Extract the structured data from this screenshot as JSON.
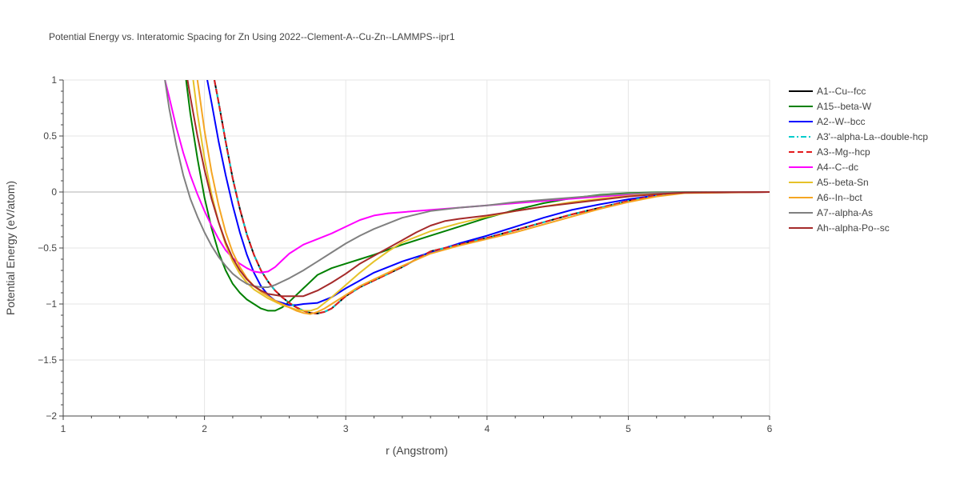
{
  "chart_data": {
    "type": "line",
    "title": "Potential Energy vs. Interatomic Spacing for Zn Using 2022--Clement-A--Cu-Zn--LAMMPS--ipr1",
    "xlabel": "r (Angstrom)",
    "ylabel": "Potential Energy (eV/atom)",
    "xlim": [
      1,
      6
    ],
    "ylim": [
      -2,
      1
    ],
    "xticks": [
      1,
      2,
      3,
      4,
      5,
      6
    ],
    "yticks": [
      1,
      0.5,
      0,
      -0.5,
      -1,
      -1.5,
      -2
    ],
    "ytick_labels": [
      "1",
      "0.5",
      "0",
      "−0.5",
      "−1",
      "−1.5",
      "−2"
    ],
    "grid": true,
    "legend_position": "right",
    "series": [
      {
        "name": "A1--Cu--fcc",
        "color": "#000000",
        "dash": "solid",
        "x": [
          2.07,
          2.1,
          2.15,
          2.2,
          2.25,
          2.3,
          2.35,
          2.4,
          2.45,
          2.5,
          2.55,
          2.6,
          2.65,
          2.7,
          2.75,
          2.8,
          2.85,
          2.9,
          3.0,
          3.1,
          3.2,
          3.3,
          3.4,
          3.5,
          3.6,
          3.8,
          4.0,
          4.2,
          4.4,
          4.6,
          4.8,
          5.0,
          5.2,
          5.4,
          5.6,
          6.0
        ],
        "y": [
          1.0,
          0.8,
          0.45,
          0.12,
          -0.15,
          -0.38,
          -0.56,
          -0.7,
          -0.8,
          -0.88,
          -0.94,
          -0.99,
          -1.03,
          -1.06,
          -1.08,
          -1.085,
          -1.07,
          -1.04,
          -0.93,
          -0.85,
          -0.79,
          -0.73,
          -0.67,
          -0.6,
          -0.53,
          -0.47,
          -0.41,
          -0.34,
          -0.27,
          -0.2,
          -0.14,
          -0.08,
          -0.03,
          -0.005,
          0.0,
          0.0
        ]
      },
      {
        "name": "A15--beta-W",
        "color": "#008000",
        "dash": "solid",
        "x": [
          1.87,
          1.9,
          1.95,
          2.0,
          2.05,
          2.1,
          2.15,
          2.2,
          2.25,
          2.3,
          2.35,
          2.4,
          2.45,
          2.5,
          2.55,
          2.6,
          2.65,
          2.7,
          2.8,
          2.9,
          3.0,
          3.1,
          3.2,
          3.4,
          3.6,
          3.8,
          4.0,
          4.2,
          4.4,
          4.6,
          4.8,
          5.0,
          5.2,
          5.4,
          6.0
        ],
        "y": [
          1.0,
          0.7,
          0.3,
          -0.05,
          -0.32,
          -0.54,
          -0.7,
          -0.82,
          -0.9,
          -0.96,
          -1.0,
          -1.04,
          -1.06,
          -1.06,
          -1.03,
          -0.98,
          -0.92,
          -0.86,
          -0.74,
          -0.68,
          -0.64,
          -0.6,
          -0.56,
          -0.47,
          -0.39,
          -0.31,
          -0.23,
          -0.16,
          -0.1,
          -0.055,
          -0.025,
          -0.01,
          -0.003,
          0.0,
          0.0
        ]
      },
      {
        "name": "A2--W--bcc",
        "color": "#0000ff",
        "dash": "solid",
        "x": [
          2.02,
          2.05,
          2.1,
          2.15,
          2.2,
          2.25,
          2.3,
          2.35,
          2.4,
          2.45,
          2.5,
          2.55,
          2.6,
          2.65,
          2.7,
          2.8,
          2.9,
          3.0,
          3.1,
          3.2,
          3.3,
          3.4,
          3.6,
          3.8,
          4.0,
          4.2,
          4.4,
          4.6,
          4.8,
          5.0,
          5.2,
          5.4,
          6.0
        ],
        "y": [
          1.0,
          0.8,
          0.45,
          0.15,
          -0.12,
          -0.36,
          -0.56,
          -0.72,
          -0.84,
          -0.92,
          -0.97,
          -0.99,
          -1.01,
          -1.01,
          -1.0,
          -0.99,
          -0.94,
          -0.86,
          -0.79,
          -0.72,
          -0.67,
          -0.62,
          -0.54,
          -0.46,
          -0.39,
          -0.31,
          -0.23,
          -0.16,
          -0.11,
          -0.065,
          -0.03,
          -0.008,
          0.0
        ]
      },
      {
        "name": "A3'--alpha-La--double-hcp",
        "color": "#00cccc",
        "dash": "dashdot",
        "x": [
          2.07,
          2.1,
          2.15,
          2.2,
          2.25,
          2.3,
          2.35,
          2.4,
          2.45,
          2.5,
          2.55,
          2.6,
          2.65,
          2.7,
          2.75,
          2.8,
          2.85,
          2.9,
          3.0,
          3.1,
          3.2,
          3.3,
          3.4,
          3.5,
          3.6,
          3.8,
          4.0,
          4.2,
          4.4,
          4.6,
          4.8,
          5.0,
          5.2,
          5.4,
          5.6,
          6.0
        ],
        "y": [
          1.0,
          0.8,
          0.45,
          0.12,
          -0.15,
          -0.38,
          -0.56,
          -0.7,
          -0.8,
          -0.88,
          -0.94,
          -0.99,
          -1.03,
          -1.06,
          -1.08,
          -1.085,
          -1.07,
          -1.04,
          -0.93,
          -0.85,
          -0.79,
          -0.73,
          -0.67,
          -0.6,
          -0.53,
          -0.47,
          -0.41,
          -0.34,
          -0.27,
          -0.2,
          -0.14,
          -0.08,
          -0.03,
          -0.005,
          0.0,
          0.0
        ]
      },
      {
        "name": "A3--Mg--hcp",
        "color": "#e41a1c",
        "dash": "dash",
        "x": [
          2.07,
          2.1,
          2.15,
          2.2,
          2.25,
          2.3,
          2.35,
          2.4,
          2.45,
          2.5,
          2.55,
          2.6,
          2.65,
          2.7,
          2.75,
          2.8,
          2.85,
          2.9,
          3.0,
          3.1,
          3.2,
          3.3,
          3.4,
          3.5,
          3.6,
          3.8,
          4.0,
          4.2,
          4.4,
          4.6,
          4.8,
          5.0,
          5.2,
          5.4,
          5.6,
          6.0
        ],
        "y": [
          1.0,
          0.8,
          0.45,
          0.12,
          -0.15,
          -0.38,
          -0.56,
          -0.7,
          -0.8,
          -0.88,
          -0.94,
          -0.99,
          -1.03,
          -1.06,
          -1.08,
          -1.085,
          -1.07,
          -1.04,
          -0.93,
          -0.85,
          -0.79,
          -0.73,
          -0.67,
          -0.6,
          -0.53,
          -0.47,
          -0.41,
          -0.34,
          -0.27,
          -0.2,
          -0.14,
          -0.08,
          -0.03,
          -0.005,
          0.0,
          0.0
        ]
      },
      {
        "name": "A4--C--dc",
        "color": "#ff00ff",
        "dash": "solid",
        "x": [
          1.72,
          1.75,
          1.8,
          1.85,
          1.9,
          1.95,
          2.0,
          2.05,
          2.1,
          2.15,
          2.2,
          2.25,
          2.3,
          2.35,
          2.4,
          2.45,
          2.5,
          2.55,
          2.6,
          2.7,
          2.8,
          2.9,
          3.0,
          3.1,
          3.2,
          3.3,
          3.4,
          3.6,
          3.8,
          4.0,
          4.2,
          4.4,
          4.6,
          4.8,
          5.0,
          5.2,
          5.4,
          6.0
        ],
        "y": [
          1.0,
          0.85,
          0.58,
          0.35,
          0.15,
          -0.02,
          -0.17,
          -0.3,
          -0.42,
          -0.52,
          -0.59,
          -0.64,
          -0.68,
          -0.71,
          -0.72,
          -0.71,
          -0.67,
          -0.61,
          -0.55,
          -0.47,
          -0.42,
          -0.37,
          -0.31,
          -0.25,
          -0.21,
          -0.19,
          -0.18,
          -0.16,
          -0.14,
          -0.12,
          -0.1,
          -0.08,
          -0.06,
          -0.04,
          -0.025,
          -0.012,
          -0.004,
          0.0
        ]
      },
      {
        "name": "A5--beta-Sn",
        "color": "#e6c229",
        "dash": "solid",
        "x": [
          1.92,
          1.95,
          2.0,
          2.05,
          2.1,
          2.15,
          2.2,
          2.25,
          2.3,
          2.35,
          2.4,
          2.45,
          2.5,
          2.55,
          2.6,
          2.65,
          2.7,
          2.75,
          2.8,
          2.9,
          3.0,
          3.1,
          3.2,
          3.3,
          3.4,
          3.6,
          3.8,
          4.0,
          4.2,
          4.4,
          4.6,
          4.8,
          5.0,
          5.2,
          5.4,
          6.0
        ],
        "y": [
          1.0,
          0.7,
          0.3,
          -0.02,
          -0.27,
          -0.47,
          -0.62,
          -0.73,
          -0.81,
          -0.87,
          -0.91,
          -0.95,
          -0.98,
          -1.01,
          -1.03,
          -1.05,
          -1.06,
          -1.06,
          -1.04,
          -0.94,
          -0.83,
          -0.72,
          -0.62,
          -0.53,
          -0.45,
          -0.35,
          -0.28,
          -0.22,
          -0.17,
          -0.13,
          -0.09,
          -0.06,
          -0.035,
          -0.015,
          -0.004,
          0.0
        ]
      },
      {
        "name": "A6--In--bct",
        "color": "#f5a623",
        "dash": "solid",
        "x": [
          1.95,
          2.0,
          2.05,
          2.1,
          2.15,
          2.2,
          2.25,
          2.3,
          2.35,
          2.4,
          2.45,
          2.5,
          2.55,
          2.6,
          2.65,
          2.7,
          2.75,
          2.8,
          2.85,
          2.9,
          3.0,
          3.1,
          3.2,
          3.3,
          3.4,
          3.6,
          3.8,
          4.0,
          4.2,
          4.4,
          4.6,
          4.8,
          5.0,
          5.2,
          5.4,
          6.0
        ],
        "y": [
          1.0,
          0.55,
          0.18,
          -0.12,
          -0.36,
          -0.54,
          -0.67,
          -0.77,
          -0.84,
          -0.89,
          -0.93,
          -0.97,
          -1.0,
          -1.03,
          -1.06,
          -1.08,
          -1.09,
          -1.07,
          -1.04,
          -1.0,
          -0.92,
          -0.84,
          -0.78,
          -0.72,
          -0.66,
          -0.55,
          -0.48,
          -0.42,
          -0.36,
          -0.29,
          -0.22,
          -0.15,
          -0.09,
          -0.04,
          -0.01,
          0.0
        ]
      },
      {
        "name": "A7--alpha-As",
        "color": "#808080",
        "dash": "solid",
        "x": [
          1.72,
          1.75,
          1.8,
          1.85,
          1.9,
          1.95,
          2.0,
          2.05,
          2.1,
          2.15,
          2.2,
          2.25,
          2.3,
          2.35,
          2.4,
          2.45,
          2.5,
          2.55,
          2.6,
          2.7,
          2.8,
          2.9,
          3.0,
          3.1,
          3.2,
          3.3,
          3.4,
          3.6,
          3.8,
          4.0,
          4.2,
          4.4,
          4.6,
          4.8,
          5.0,
          5.2,
          5.4,
          6.0
        ],
        "y": [
          1.0,
          0.75,
          0.42,
          0.15,
          -0.06,
          -0.22,
          -0.36,
          -0.48,
          -0.58,
          -0.66,
          -0.73,
          -0.78,
          -0.82,
          -0.84,
          -0.85,
          -0.85,
          -0.83,
          -0.8,
          -0.77,
          -0.7,
          -0.62,
          -0.54,
          -0.46,
          -0.39,
          -0.33,
          -0.28,
          -0.23,
          -0.17,
          -0.14,
          -0.12,
          -0.09,
          -0.07,
          -0.05,
          -0.03,
          -0.015,
          -0.005,
          -0.001,
          0.0
        ]
      },
      {
        "name": "Ah--alpha-Po--sc",
        "color": "#a52a2a",
        "dash": "solid",
        "x": [
          1.88,
          1.9,
          1.95,
          2.0,
          2.05,
          2.1,
          2.15,
          2.2,
          2.25,
          2.3,
          2.35,
          2.4,
          2.45,
          2.5,
          2.55,
          2.6,
          2.7,
          2.8,
          2.9,
          3.0,
          3.1,
          3.2,
          3.3,
          3.4,
          3.5,
          3.6,
          3.7,
          3.8,
          4.0,
          4.2,
          4.4,
          4.6,
          4.8,
          5.0,
          5.2,
          5.4,
          6.0
        ],
        "y": [
          1.0,
          0.85,
          0.5,
          0.2,
          -0.06,
          -0.27,
          -0.45,
          -0.59,
          -0.7,
          -0.78,
          -0.84,
          -0.88,
          -0.91,
          -0.92,
          -0.93,
          -0.93,
          -0.93,
          -0.88,
          -0.81,
          -0.73,
          -0.64,
          -0.57,
          -0.5,
          -0.43,
          -0.36,
          -0.3,
          -0.26,
          -0.24,
          -0.21,
          -0.17,
          -0.13,
          -0.1,
          -0.07,
          -0.04,
          -0.02,
          -0.005,
          0.0
        ]
      }
    ]
  }
}
